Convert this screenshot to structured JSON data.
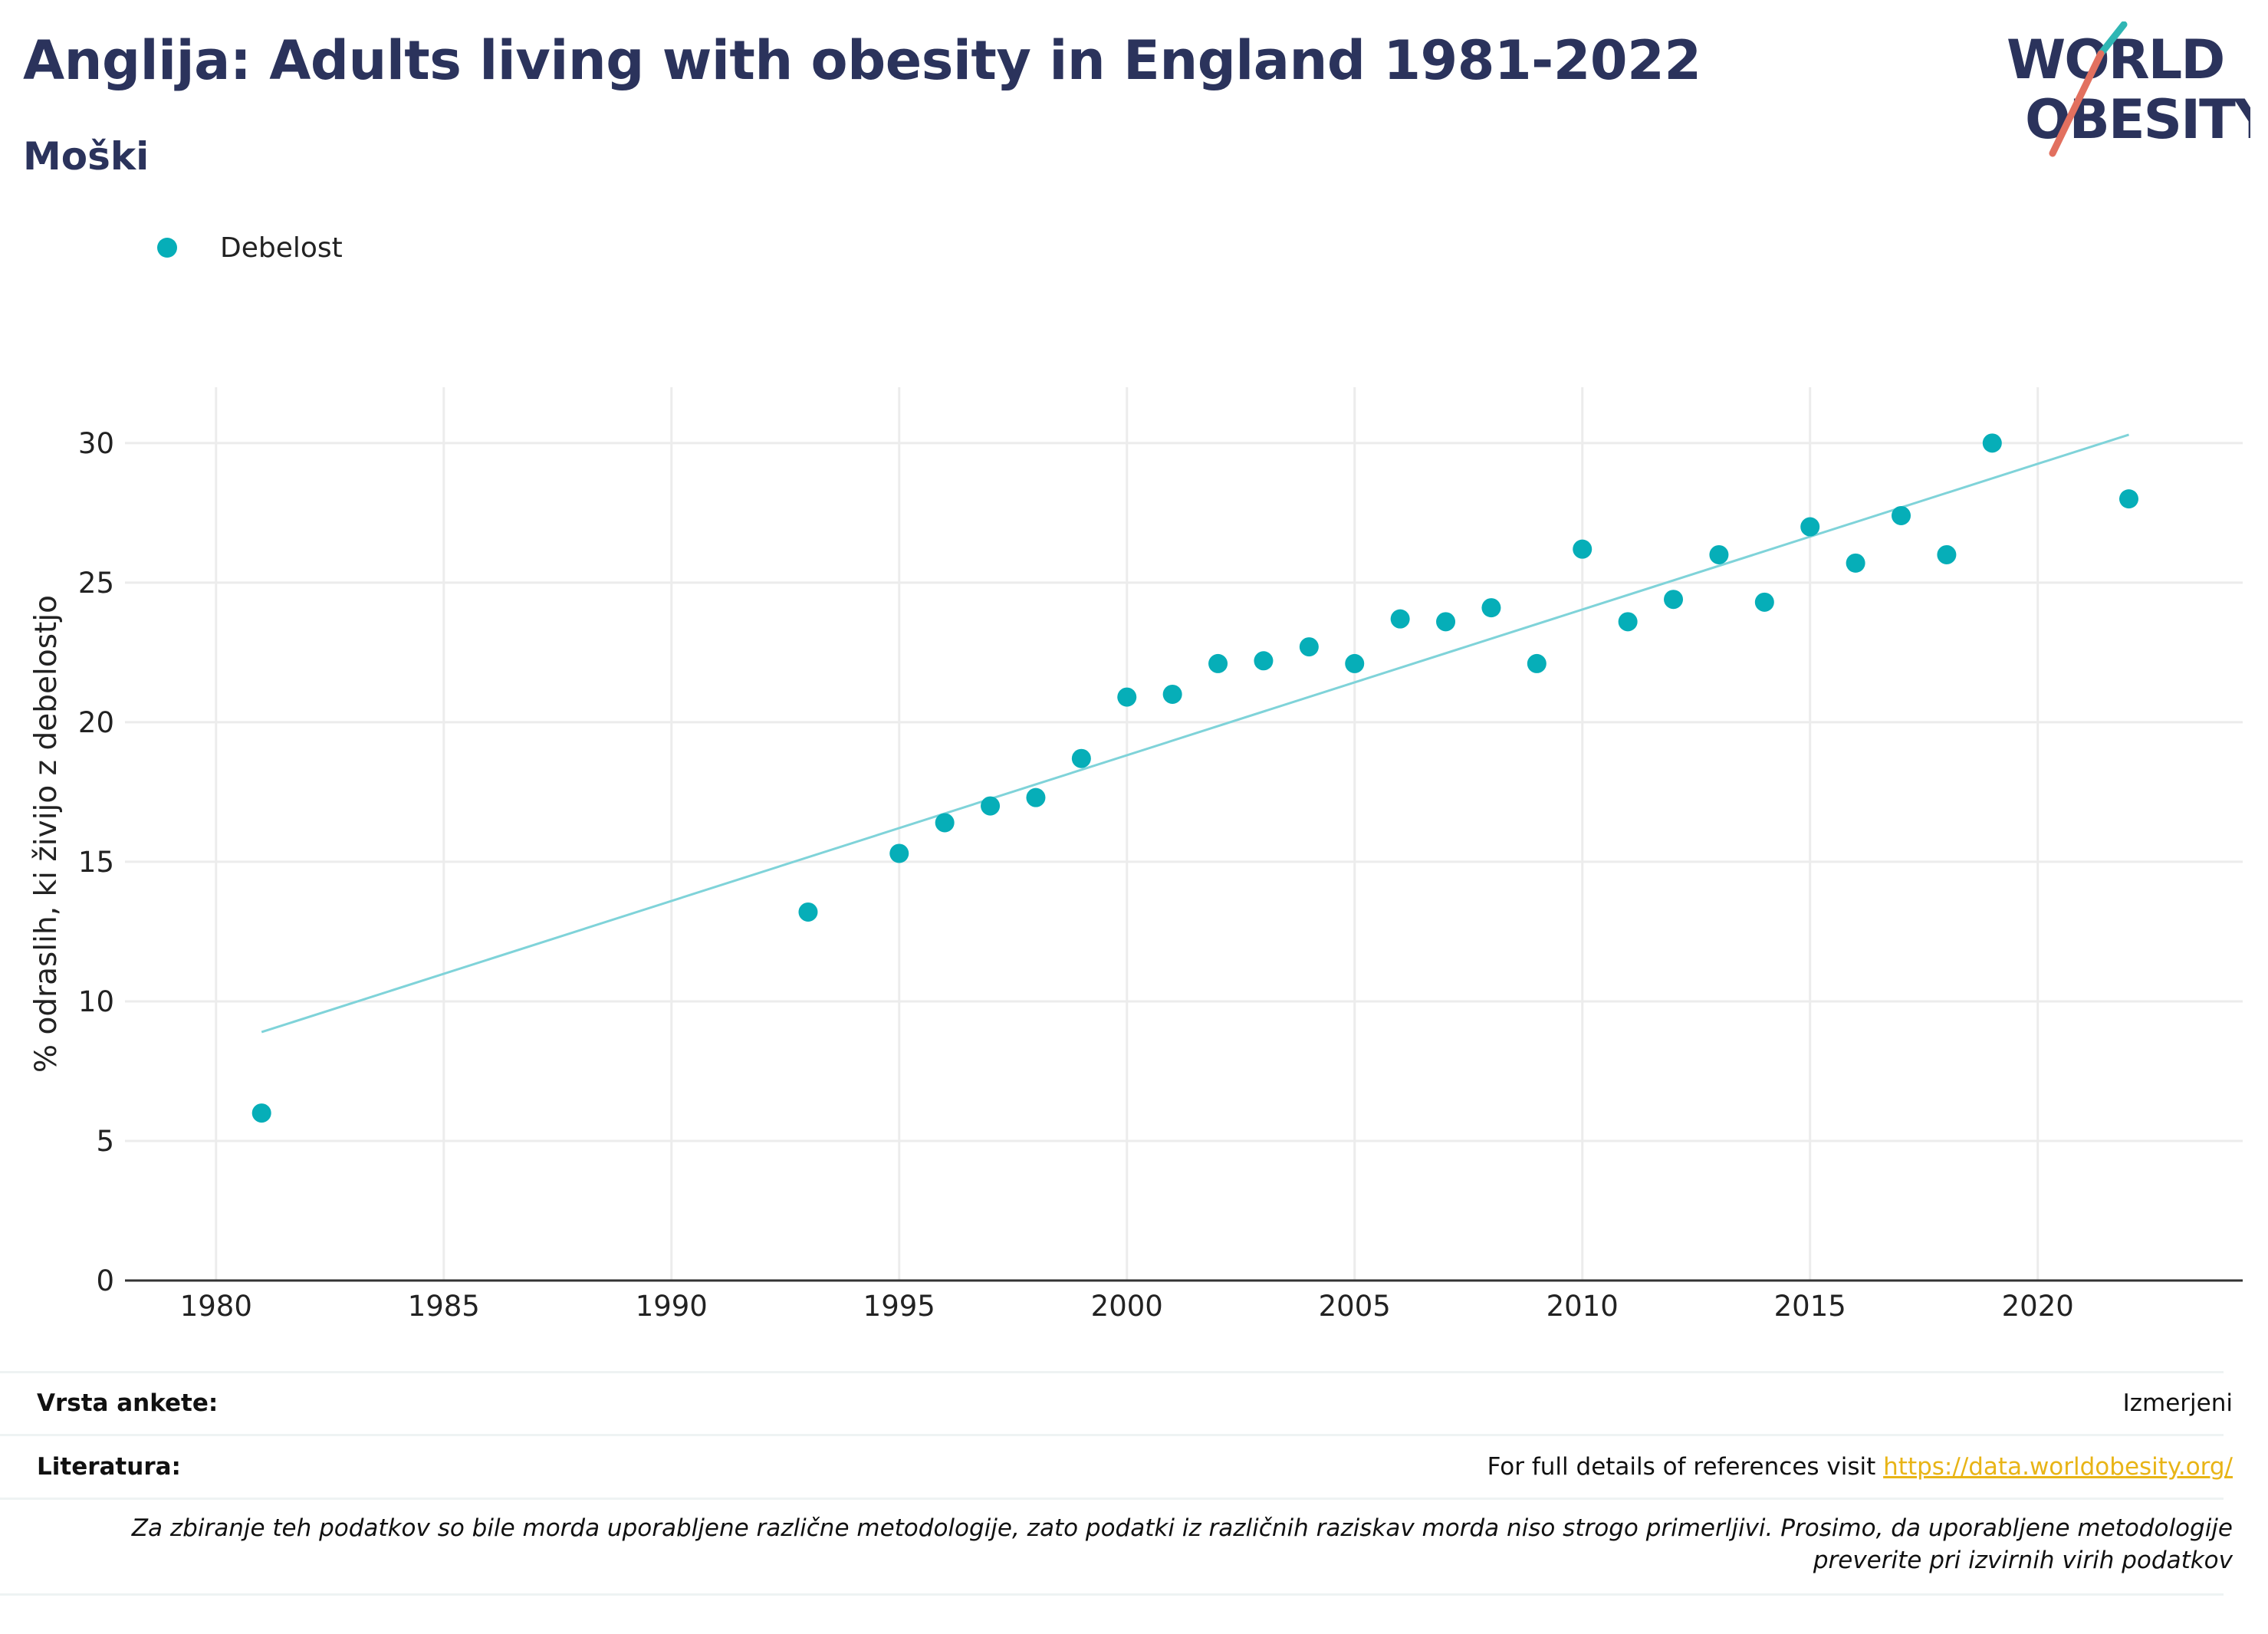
{
  "header": {
    "title": "Anglija: Adults living with obesity in England 1981-2022",
    "subtitle": "Moški"
  },
  "logo": {
    "line1": "WORLD",
    "line2": "OBESITY",
    "colors": {
      "text": "#2b335c",
      "slash_top": "#2fb6b4",
      "slash_bottom": "#e2705f"
    }
  },
  "legend": {
    "label": "Debelost"
  },
  "colors": {
    "point": "#06aeb8",
    "trend": "#7fd3d9",
    "grid": "#ececec",
    "axis": "#333333",
    "title": "#2b335c",
    "link": "#e8b416"
  },
  "chart_data": {
    "type": "scatter",
    "ylabel": "% odraslih, ki živijo z debelostjo",
    "xlabel": "",
    "xlim": [
      1978,
      2024.5
    ],
    "ylim": [
      0,
      32
    ],
    "x_ticks": [
      1980,
      1985,
      1990,
      1995,
      2000,
      2005,
      2010,
      2015,
      2020
    ],
    "y_ticks": [
      0,
      5,
      10,
      15,
      20,
      25,
      30
    ],
    "grid": true,
    "legend_position": "top-left",
    "series": [
      {
        "name": "Debelost",
        "points": [
          {
            "x": 1981,
            "y": 6.0
          },
          {
            "x": 1993,
            "y": 13.2
          },
          {
            "x": 1995,
            "y": 15.3
          },
          {
            "x": 1996,
            "y": 16.4
          },
          {
            "x": 1997,
            "y": 17.0
          },
          {
            "x": 1998,
            "y": 17.3
          },
          {
            "x": 1999,
            "y": 18.7
          },
          {
            "x": 2000,
            "y": 20.9
          },
          {
            "x": 2001,
            "y": 21.0
          },
          {
            "x": 2002,
            "y": 22.1
          },
          {
            "x": 2003,
            "y": 22.2
          },
          {
            "x": 2004,
            "y": 22.7
          },
          {
            "x": 2005,
            "y": 22.1
          },
          {
            "x": 2006,
            "y": 23.7
          },
          {
            "x": 2007,
            "y": 23.6
          },
          {
            "x": 2008,
            "y": 24.1
          },
          {
            "x": 2009,
            "y": 22.1
          },
          {
            "x": 2010,
            "y": 26.2
          },
          {
            "x": 2011,
            "y": 23.6
          },
          {
            "x": 2012,
            "y": 24.4
          },
          {
            "x": 2013,
            "y": 26.0
          },
          {
            "x": 2014,
            "y": 24.3
          },
          {
            "x": 2015,
            "y": 27.0
          },
          {
            "x": 2016,
            "y": 25.7
          },
          {
            "x": 2017,
            "y": 27.4
          },
          {
            "x": 2018,
            "y": 26.0
          },
          {
            "x": 2019,
            "y": 30.0
          },
          {
            "x": 2022,
            "y": 28.0
          }
        ]
      }
    ],
    "trendline": {
      "x": [
        1981,
        2022
      ],
      "y": [
        8.9,
        30.3
      ]
    }
  },
  "footer": {
    "survey_label": "Vrsta ankete:",
    "survey_value": "Izmerjeni",
    "refs_label": "Literatura:",
    "refs_text": "For full details of references visit ",
    "refs_link": "https://data.worldobesity.org/",
    "note": "Za zbiranje teh podatkov so bile morda uporabljene različne metodologije, zato podatki iz različnih raziskav morda niso strogo primerljivi. Prosimo, da uporabljene metodologije preverite pri izvirnih virih podatkov"
  }
}
